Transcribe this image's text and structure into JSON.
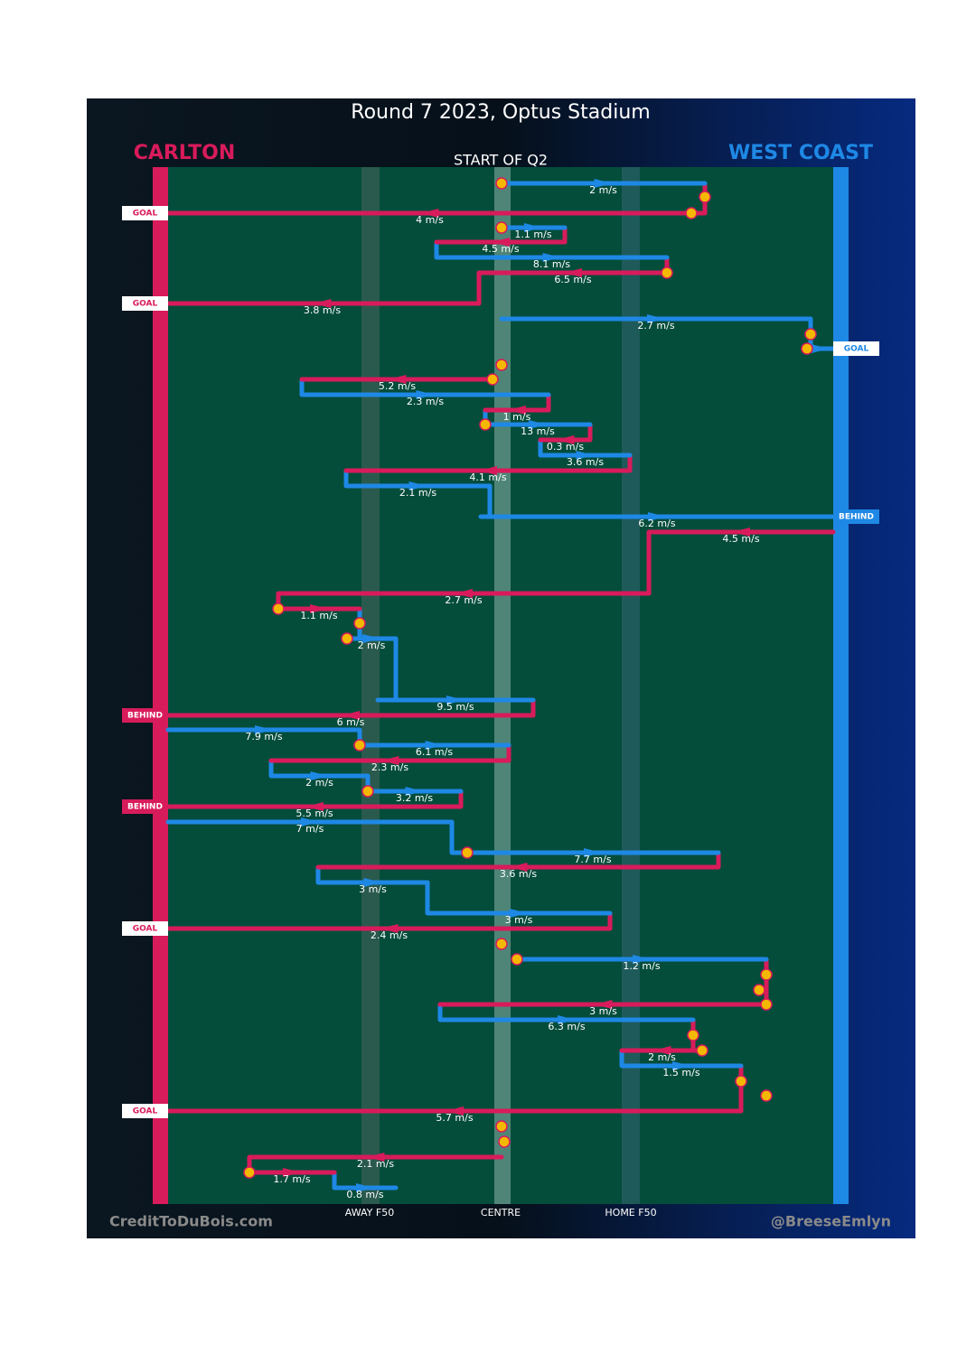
{
  "title": "Round 7 2023, Optus Stadium",
  "teams": {
    "left": {
      "name": "CARLTON",
      "color": "#d81b5b"
    },
    "right": {
      "name": "WEST COAST",
      "color": "#1e88e5"
    }
  },
  "period_label": "START OF Q2",
  "segments": [
    {
      "color": "#1e88e5",
      "speed": "2 m/s"
    },
    {
      "color": "#d81b5b",
      "speed": "4 m/s",
      "outcome": "GOAL"
    },
    {
      "color": "#1e88e5",
      "speed": "1.1 m/s"
    },
    {
      "color": "#d81b5b",
      "speed": "4.5 m/s"
    },
    {
      "color": "#1e88e5",
      "speed": "8.1 m/s"
    },
    {
      "color": "#d81b5b",
      "speed": "6.5 m/s"
    },
    {
      "color": "#d81b5b",
      "speed": "3.8 m/s",
      "outcome": "GOAL"
    },
    {
      "color": "#1e88e5",
      "speed": "2.7 m/s"
    },
    {
      "color": "#1e88e5",
      "outcome": "GOAL"
    },
    {
      "color": "#d81b5b",
      "speed": "5.2 m/s"
    },
    {
      "color": "#1e88e5",
      "speed": "2.3 m/s"
    },
    {
      "color": "#d81b5b",
      "speed": "1 m/s"
    },
    {
      "color": "#1e88e5",
      "speed": "13 m/s"
    },
    {
      "color": "#d81b5b",
      "speed": "0.3 m/s"
    },
    {
      "color": "#1e88e5",
      "speed": "3.6 m/s"
    },
    {
      "color": "#d81b5b",
      "speed": "4.1 m/s"
    },
    {
      "color": "#1e88e5",
      "speed": "2.1 m/s"
    },
    {
      "color": "#1e88e5",
      "speed": "6.2 m/s",
      "outcome": "BEHIND"
    },
    {
      "color": "#d81b5b",
      "speed": "4.5 m/s"
    },
    {
      "color": "#d81b5b",
      "speed": "2.7 m/s"
    },
    {
      "color": "#d81b5b",
      "speed": "1.1 m/s"
    },
    {
      "color": "#1e88e5",
      "speed": "2 m/s"
    },
    {
      "color": "#1e88e5",
      "speed": "9.5 m/s"
    },
    {
      "color": "#d81b5b",
      "speed": "6 m/s",
      "outcome": "BEHIND"
    },
    {
      "color": "#1e88e5",
      "speed": "7.9 m/s"
    },
    {
      "color": "#1e88e5",
      "speed": "6.1 m/s"
    },
    {
      "color": "#d81b5b",
      "speed": "2.3 m/s"
    },
    {
      "color": "#1e88e5",
      "speed": "2 m/s"
    },
    {
      "color": "#1e88e5",
      "speed": "3.2 m/s"
    },
    {
      "color": "#d81b5b",
      "speed": "5.5 m/s",
      "outcome": "BEHIND"
    },
    {
      "color": "#1e88e5",
      "speed": "7 m/s"
    },
    {
      "color": "#1e88e5",
      "speed": "7.7 m/s"
    },
    {
      "color": "#d81b5b",
      "speed": "3.6 m/s"
    },
    {
      "color": "#1e88e5",
      "speed": "3 m/s"
    },
    {
      "color": "#1e88e5",
      "speed": "3 m/s"
    },
    {
      "color": "#d81b5b",
      "speed": "2.4 m/s",
      "outcome": "GOAL"
    },
    {
      "color": "#1e88e5",
      "speed": "1.2 m/s"
    },
    {
      "color": "#d81b5b",
      "speed": "3 m/s"
    },
    {
      "color": "#1e88e5",
      "speed": "6.3 m/s"
    },
    {
      "color": "#d81b5b",
      "speed": "2 m/s"
    },
    {
      "color": "#1e88e5",
      "speed": "1.5 m/s"
    },
    {
      "color": "#d81b5b",
      "speed": "5.7 m/s",
      "outcome": "GOAL"
    },
    {
      "color": "#d81b5b",
      "speed": "2.1 m/s"
    },
    {
      "color": "#d81b5b",
      "speed": "1.7 m/s"
    },
    {
      "color": "#1e88e5",
      "speed": "0.8 m/s"
    }
  ],
  "field_labels": [
    "AWAY F50",
    "CENTRE",
    "HOME F50"
  ],
  "credits": {
    "left": "CreditToDuBois.com",
    "right": "@BreeseEmlyn"
  }
}
